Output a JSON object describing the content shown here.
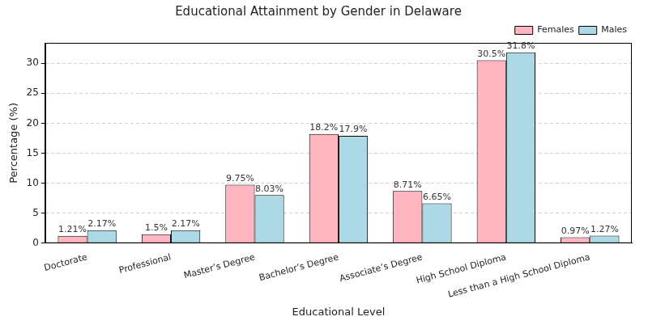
{
  "chart_data": {
    "type": "bar",
    "title": "Educational Attainment by Gender in Delaware",
    "x_label": "Educational Level",
    "y_label": "Percentage (%)",
    "categories": [
      "Doctorate",
      "Professional",
      "Master’s Degree",
      "Bachelor’s Degree",
      "Associate’s Degree",
      "High School Diploma",
      "Less than a High School Diploma"
    ],
    "series": [
      {
        "name": "Females",
        "color": "#ffb6c1",
        "values": [
          1.21,
          1.5,
          9.75,
          18.2,
          8.71,
          30.5,
          0.97
        ],
        "value_labels": [
          "1.21%",
          "1.5%",
          "9.75%",
          "18.2%",
          "8.71%",
          "30.5%",
          "0.97%"
        ]
      },
      {
        "name": "Males",
        "color": "#add8e6",
        "values": [
          2.17,
          2.17,
          8.03,
          17.9,
          6.65,
          31.8,
          1.27
        ],
        "value_labels": [
          "2.17%",
          "2.17%",
          "8.03%",
          "17.9%",
          "6.65%",
          "31.8%",
          "1.27%"
        ]
      }
    ],
    "ylim": [
      0,
      33.39
    ],
    "yticks": [
      0,
      5,
      10,
      15,
      20,
      25,
      30
    ],
    "grid": true,
    "legend": "upper right",
    "data_labels": true
  }
}
